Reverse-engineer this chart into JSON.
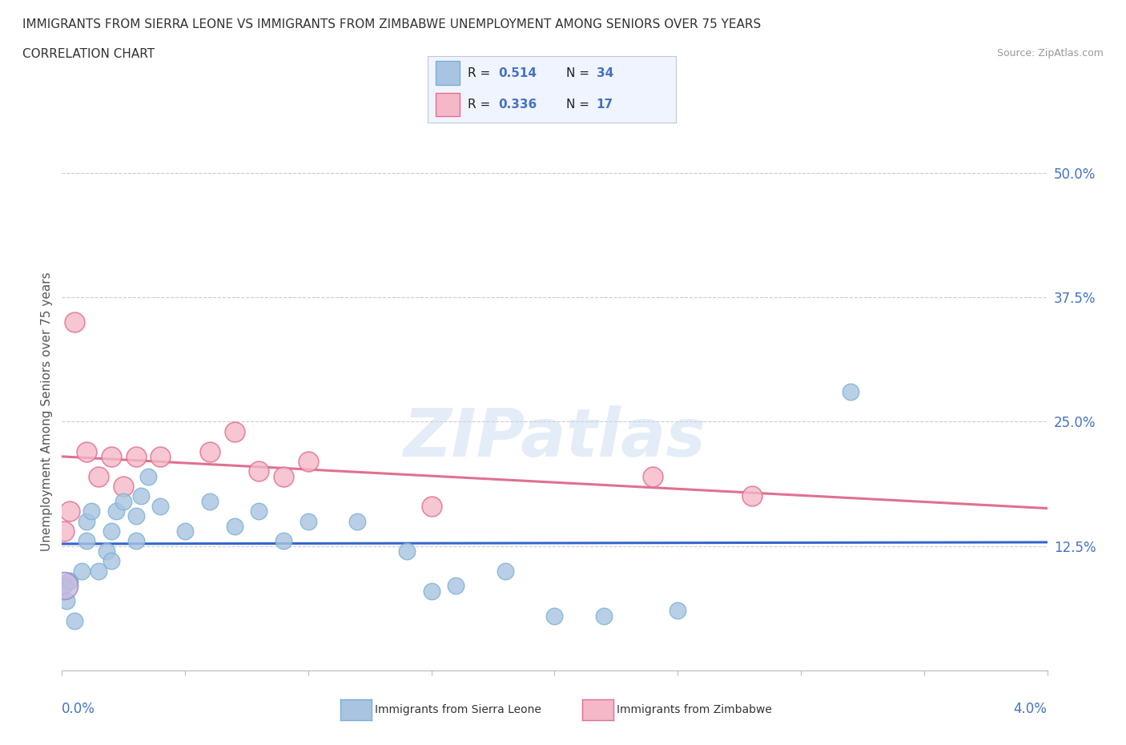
{
  "title_line1": "IMMIGRANTS FROM SIERRA LEONE VS IMMIGRANTS FROM ZIMBABWE UNEMPLOYMENT AMONG SENIORS OVER 75 YEARS",
  "title_line2": "CORRELATION CHART",
  "source_text": "Source: ZipAtlas.com",
  "ylabel": "Unemployment Among Seniors over 75 years",
  "watermark": "ZIPatlas",
  "sierra_leone_color": "#a8c4e0",
  "sierra_leone_edge": "#7aafd4",
  "sierra_leone_line_color": "#3366cc",
  "zimbabwe_color": "#f4b8c8",
  "zimbabwe_edge": "#e07090",
  "zimbabwe_line_color": "#e07090",
  "R_sierra": "0.514",
  "N_sierra": "34",
  "R_zimbabwe": "0.336",
  "N_zimbabwe": "17",
  "legend_label_sierra": "Immigrants from Sierra Leone",
  "legend_label_zimbabwe": "Immigrants from Zimbabwe",
  "background_color": "#ffffff",
  "grid_color": "#cccccc",
  "sierra_leone_x": [
    0.0001,
    0.0002,
    0.0003,
    0.0005,
    0.0008,
    0.001,
    0.001,
    0.0012,
    0.0015,
    0.0018,
    0.002,
    0.002,
    0.0022,
    0.0025,
    0.003,
    0.003,
    0.0032,
    0.0035,
    0.004,
    0.005,
    0.006,
    0.007,
    0.008,
    0.009,
    0.01,
    0.012,
    0.014,
    0.015,
    0.016,
    0.018,
    0.02,
    0.022,
    0.025,
    0.032
  ],
  "sierra_leone_y": [
    0.085,
    0.07,
    0.09,
    0.05,
    0.1,
    0.13,
    0.15,
    0.16,
    0.1,
    0.12,
    0.11,
    0.14,
    0.16,
    0.17,
    0.13,
    0.155,
    0.175,
    0.195,
    0.165,
    0.14,
    0.17,
    0.145,
    0.16,
    0.13,
    0.15,
    0.15,
    0.12,
    0.08,
    0.085,
    0.1,
    0.055,
    0.055,
    0.06,
    0.28
  ],
  "zimbabwe_x": [
    0.0001,
    0.0003,
    0.0005,
    0.001,
    0.0015,
    0.002,
    0.0025,
    0.003,
    0.004,
    0.006,
    0.007,
    0.008,
    0.009,
    0.01,
    0.015,
    0.024,
    0.028
  ],
  "zimbabwe_y": [
    0.14,
    0.16,
    0.35,
    0.22,
    0.195,
    0.215,
    0.185,
    0.215,
    0.215,
    0.22,
    0.24,
    0.2,
    0.195,
    0.21,
    0.165,
    0.195,
    0.175
  ],
  "xl": 0.0,
  "xr": 0.04,
  "yb": 0.0,
  "yt": 0.52,
  "ytick_vals": [
    0.0,
    0.125,
    0.25,
    0.375,
    0.5
  ],
  "ytick_labels": [
    "",
    "12.5%",
    "25.0%",
    "37.5%",
    "50.0%"
  ]
}
